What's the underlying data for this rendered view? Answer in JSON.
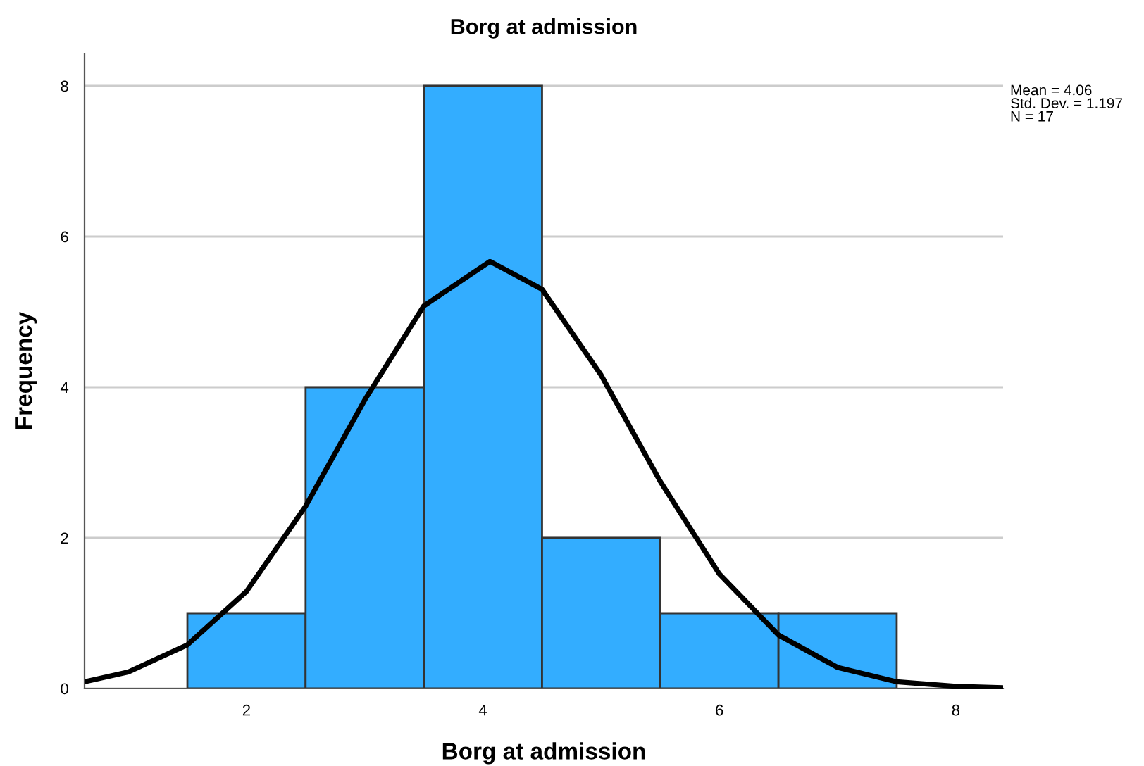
{
  "chart_data": {
    "type": "histogram",
    "title": "Borg at admission",
    "xlabel": "Borg at admission",
    "ylabel": "Frequency",
    "bins": [
      1.5,
      2.5,
      3.5,
      4.5,
      5.5,
      6.5,
      7.5
    ],
    "values": [
      1,
      4,
      8,
      2,
      1,
      1
    ],
    "color": "#33adff",
    "series": [
      {
        "type": "line",
        "color": "#000000",
        "x": [
          0.63,
          1.0,
          1.5,
          2.0,
          2.5,
          3.0,
          3.5,
          4.06,
          4.5,
          5.0,
          5.5,
          6.0,
          6.5,
          7.0,
          7.5,
          8.0,
          8.4
        ],
        "values": [
          0.09,
          0.22,
          0.58,
          1.29,
          2.42,
          3.83,
          5.08,
          5.67,
          5.3,
          4.16,
          2.75,
          1.52,
          0.71,
          0.28,
          0.09,
          0.03,
          0.01
        ]
      }
    ],
    "xlim": [
      0.63,
      8.4
    ],
    "xticks": [
      2,
      4,
      6,
      8
    ],
    "ylim": [
      0,
      8.43
    ],
    "yticks": [
      0,
      2,
      4,
      6,
      8
    ],
    "grid": "y",
    "line_style": "solid",
    "marker": "none",
    "annotations": [
      "Mean = 4.06\nStd. Dev. = 1.197\nN = 17"
    ]
  }
}
